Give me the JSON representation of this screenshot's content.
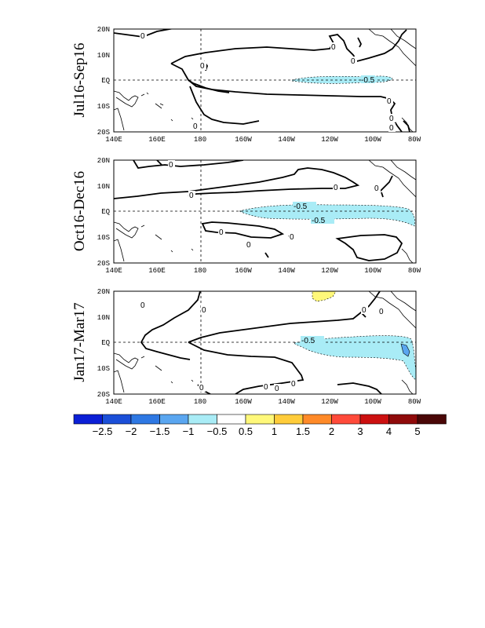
{
  "panels": [
    {
      "title": "Jul16-Sep16",
      "contour_labels": [
        "0",
        "0",
        "0",
        "0",
        "0",
        "0",
        "0",
        "0",
        "-0.5"
      ]
    },
    {
      "title": "Oct16-Dec16",
      "contour_labels": [
        "0",
        "0",
        "0",
        "0",
        "0",
        "0",
        "0",
        "-0.5",
        "-0.5"
      ]
    },
    {
      "title": "Jan17-Mar17",
      "contour_labels": [
        "0",
        "0",
        "0",
        "0",
        "0",
        "0",
        "0",
        "0",
        "-0.5"
      ]
    }
  ],
  "lon_ticks": [
    "140E",
    "160E",
    "180",
    "160W",
    "140W",
    "120W",
    "100W",
    "80W"
  ],
  "lat_ticks": [
    "20N",
    "10N",
    "EQ",
    "10S",
    "20S"
  ],
  "colorbar": {
    "colors": [
      "#0b1fd6",
      "#1b4fd8",
      "#2e78e3",
      "#5aa6f0",
      "#a9ecf6",
      "#ffffff",
      "#fff87a",
      "#ffcc3a",
      "#ff8a28",
      "#ff4a3a",
      "#cc1010",
      "#8f0a0a",
      "#4a0707"
    ],
    "labels": [
      "-2.5",
      "-2",
      "-1.5",
      "-1",
      "-0.5",
      "0.5",
      "1",
      "1.5",
      "2",
      "3",
      "4",
      "5"
    ]
  },
  "fill_colors": {
    "neg": "#a9ecf6",
    "neg_strong": "#5aa6f0",
    "pos": "#fff87a"
  }
}
